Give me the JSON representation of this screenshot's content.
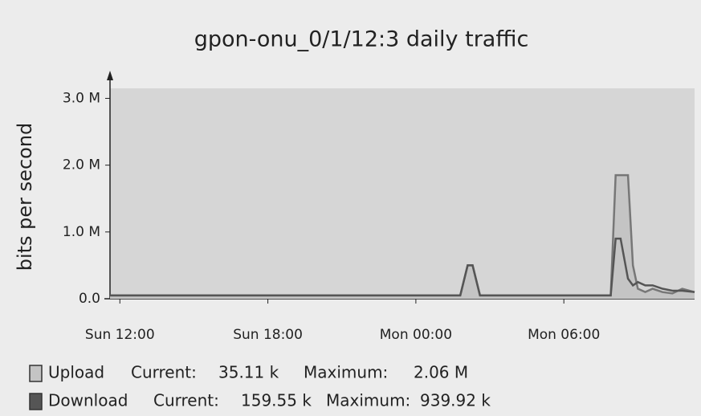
{
  "chart_data": {
    "type": "line",
    "title": "gpon-onu_0/1/12:3 daily traffic",
    "y_label": "bits per second",
    "x": [
      11.6,
      25.8,
      26.1,
      26.3,
      26.6,
      26.8,
      31.9,
      32.1,
      32.3,
      32.6,
      32.8,
      33.0,
      33.3,
      33.6,
      34.0,
      34.4,
      34.8,
      35.3
    ],
    "xlim": [
      11.6,
      35.3
    ],
    "xticks": [
      {
        "value": 12,
        "label": "Sun 12:00"
      },
      {
        "value": 18,
        "label": "Sun 18:00"
      },
      {
        "value": 24,
        "label": "Mon 00:00"
      },
      {
        "value": 30,
        "label": "Mon 06:00"
      }
    ],
    "ylim": [
      0,
      3150000
    ],
    "yticks": [
      {
        "value": 0,
        "label": "0.0"
      },
      {
        "value": 1000000,
        "label": "1.0 M"
      },
      {
        "value": 2000000,
        "label": "2.0 M"
      },
      {
        "value": 3000000,
        "label": "3.0 M"
      }
    ],
    "legend": {
      "current_label": "Current:",
      "maximum_label": "Maximum:"
    },
    "series": [
      {
        "name": "Upload",
        "color": "#c4c4c4",
        "current": "35.11 k",
        "maximum": "2.06 M",
        "values": [
          50000,
          50000,
          500000,
          500000,
          50000,
          50000,
          50000,
          1850000,
          1850000,
          1850000,
          500000,
          150000,
          100000,
          150000,
          100000,
          80000,
          150000,
          100000
        ]
      },
      {
        "name": "Download",
        "color": "#555555",
        "current": "159.55 k",
        "maximum": "939.92 k",
        "values": [
          50000,
          50000,
          500000,
          500000,
          50000,
          50000,
          50000,
          900000,
          900000,
          300000,
          200000,
          250000,
          200000,
          200000,
          150000,
          120000,
          120000,
          100000
        ]
      }
    ]
  }
}
